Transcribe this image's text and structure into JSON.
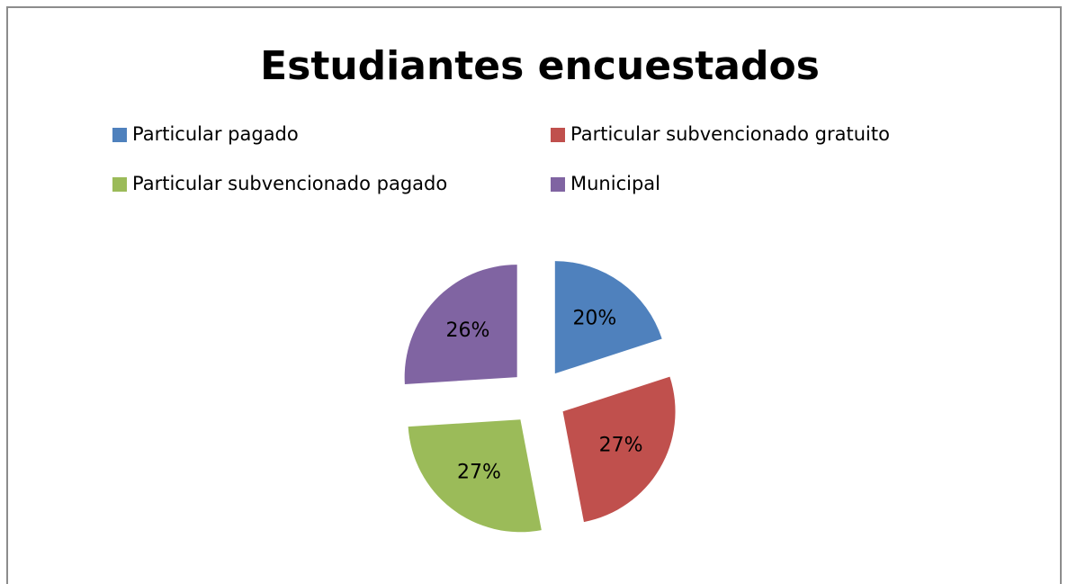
{
  "chart_data": {
    "type": "pie",
    "title": "Estudiantes encuestados",
    "categories": [
      "Particular pagado",
      "Particular subvencionado gratuito",
      "Particular subvencionado pagado",
      "Municipal"
    ],
    "values": [
      20,
      27,
      27,
      26
    ],
    "value_labels": [
      "20%",
      "27%",
      "27%",
      "26%"
    ],
    "colors": [
      "#4f81bd",
      "#c0504d",
      "#9bbb59",
      "#8064a2"
    ],
    "legend": "top"
  }
}
